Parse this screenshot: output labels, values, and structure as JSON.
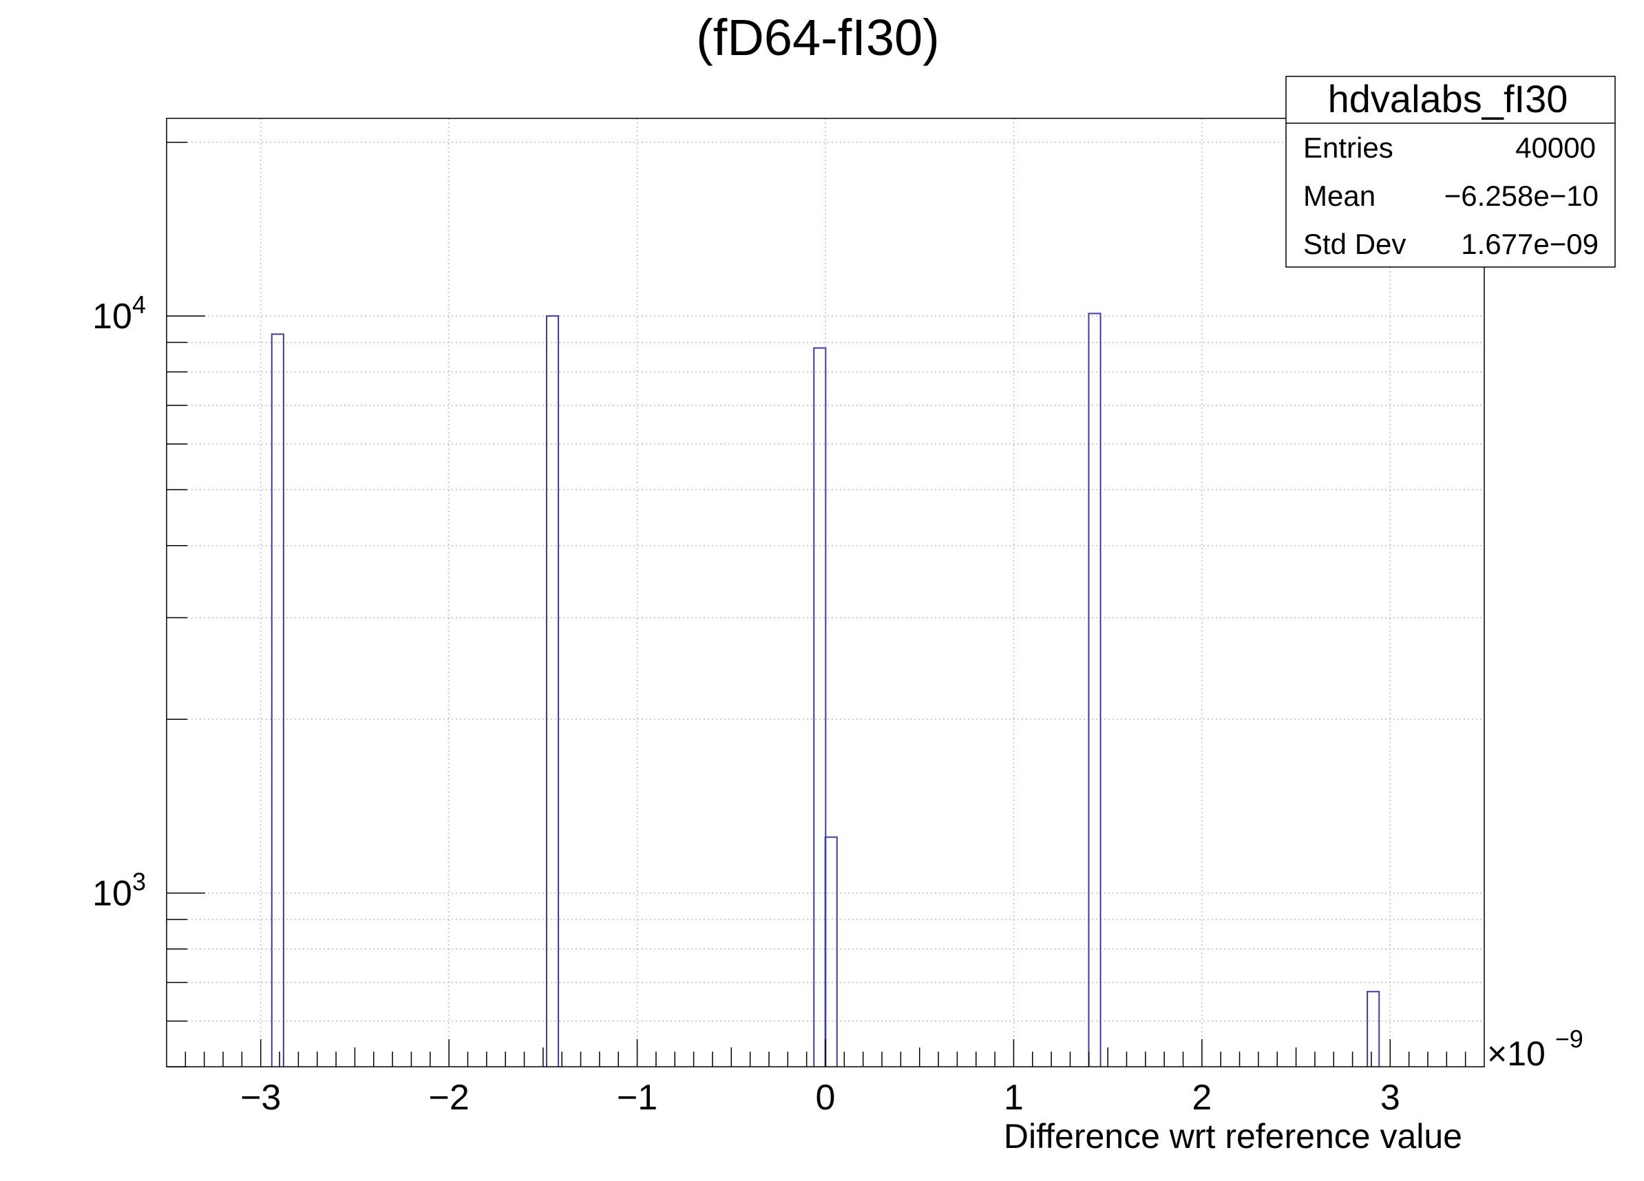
{
  "chart_data": {
    "type": "bar",
    "title": "(fD64-fI30)",
    "xlabel": "Difference wrt reference value",
    "ylabel": "",
    "x_exponent": {
      "base": "×10",
      "exp": "−9"
    },
    "xlim": [
      -3.5,
      3.5
    ],
    "ylim": [
      500,
      22000
    ],
    "y_scale": "log",
    "grid": true,
    "x_ticks": [
      -3,
      -2,
      -1,
      0,
      1,
      2,
      3
    ],
    "x_tick_labels": [
      "−3",
      "−2",
      "−1",
      "0",
      "1",
      "2",
      "3"
    ],
    "y_ticks": [
      {
        "value": 1000,
        "base": "10",
        "exp": "3"
      },
      {
        "value": 10000,
        "base": "10",
        "exp": "4"
      }
    ],
    "bin_width": 0.0625,
    "series": [
      {
        "color": "#3b3bb0",
        "bins": [
          {
            "x": -2.91,
            "value": 9300
          },
          {
            "x": -1.45,
            "value": 10000
          },
          {
            "x": -0.03,
            "value": 8800
          },
          {
            "x": 0.03,
            "value": 1250
          },
          {
            "x": 1.43,
            "value": 10100
          },
          {
            "x": 2.91,
            "value": 675
          }
        ]
      }
    ],
    "stats": {
      "name": "hdvalabs_fI30",
      "rows": [
        {
          "label": "Entries",
          "value": "40000"
        },
        {
          "label": "Mean",
          "value": "−6.258e−10"
        },
        {
          "label": "Std Dev",
          "value": "1.677e−09"
        }
      ]
    }
  }
}
